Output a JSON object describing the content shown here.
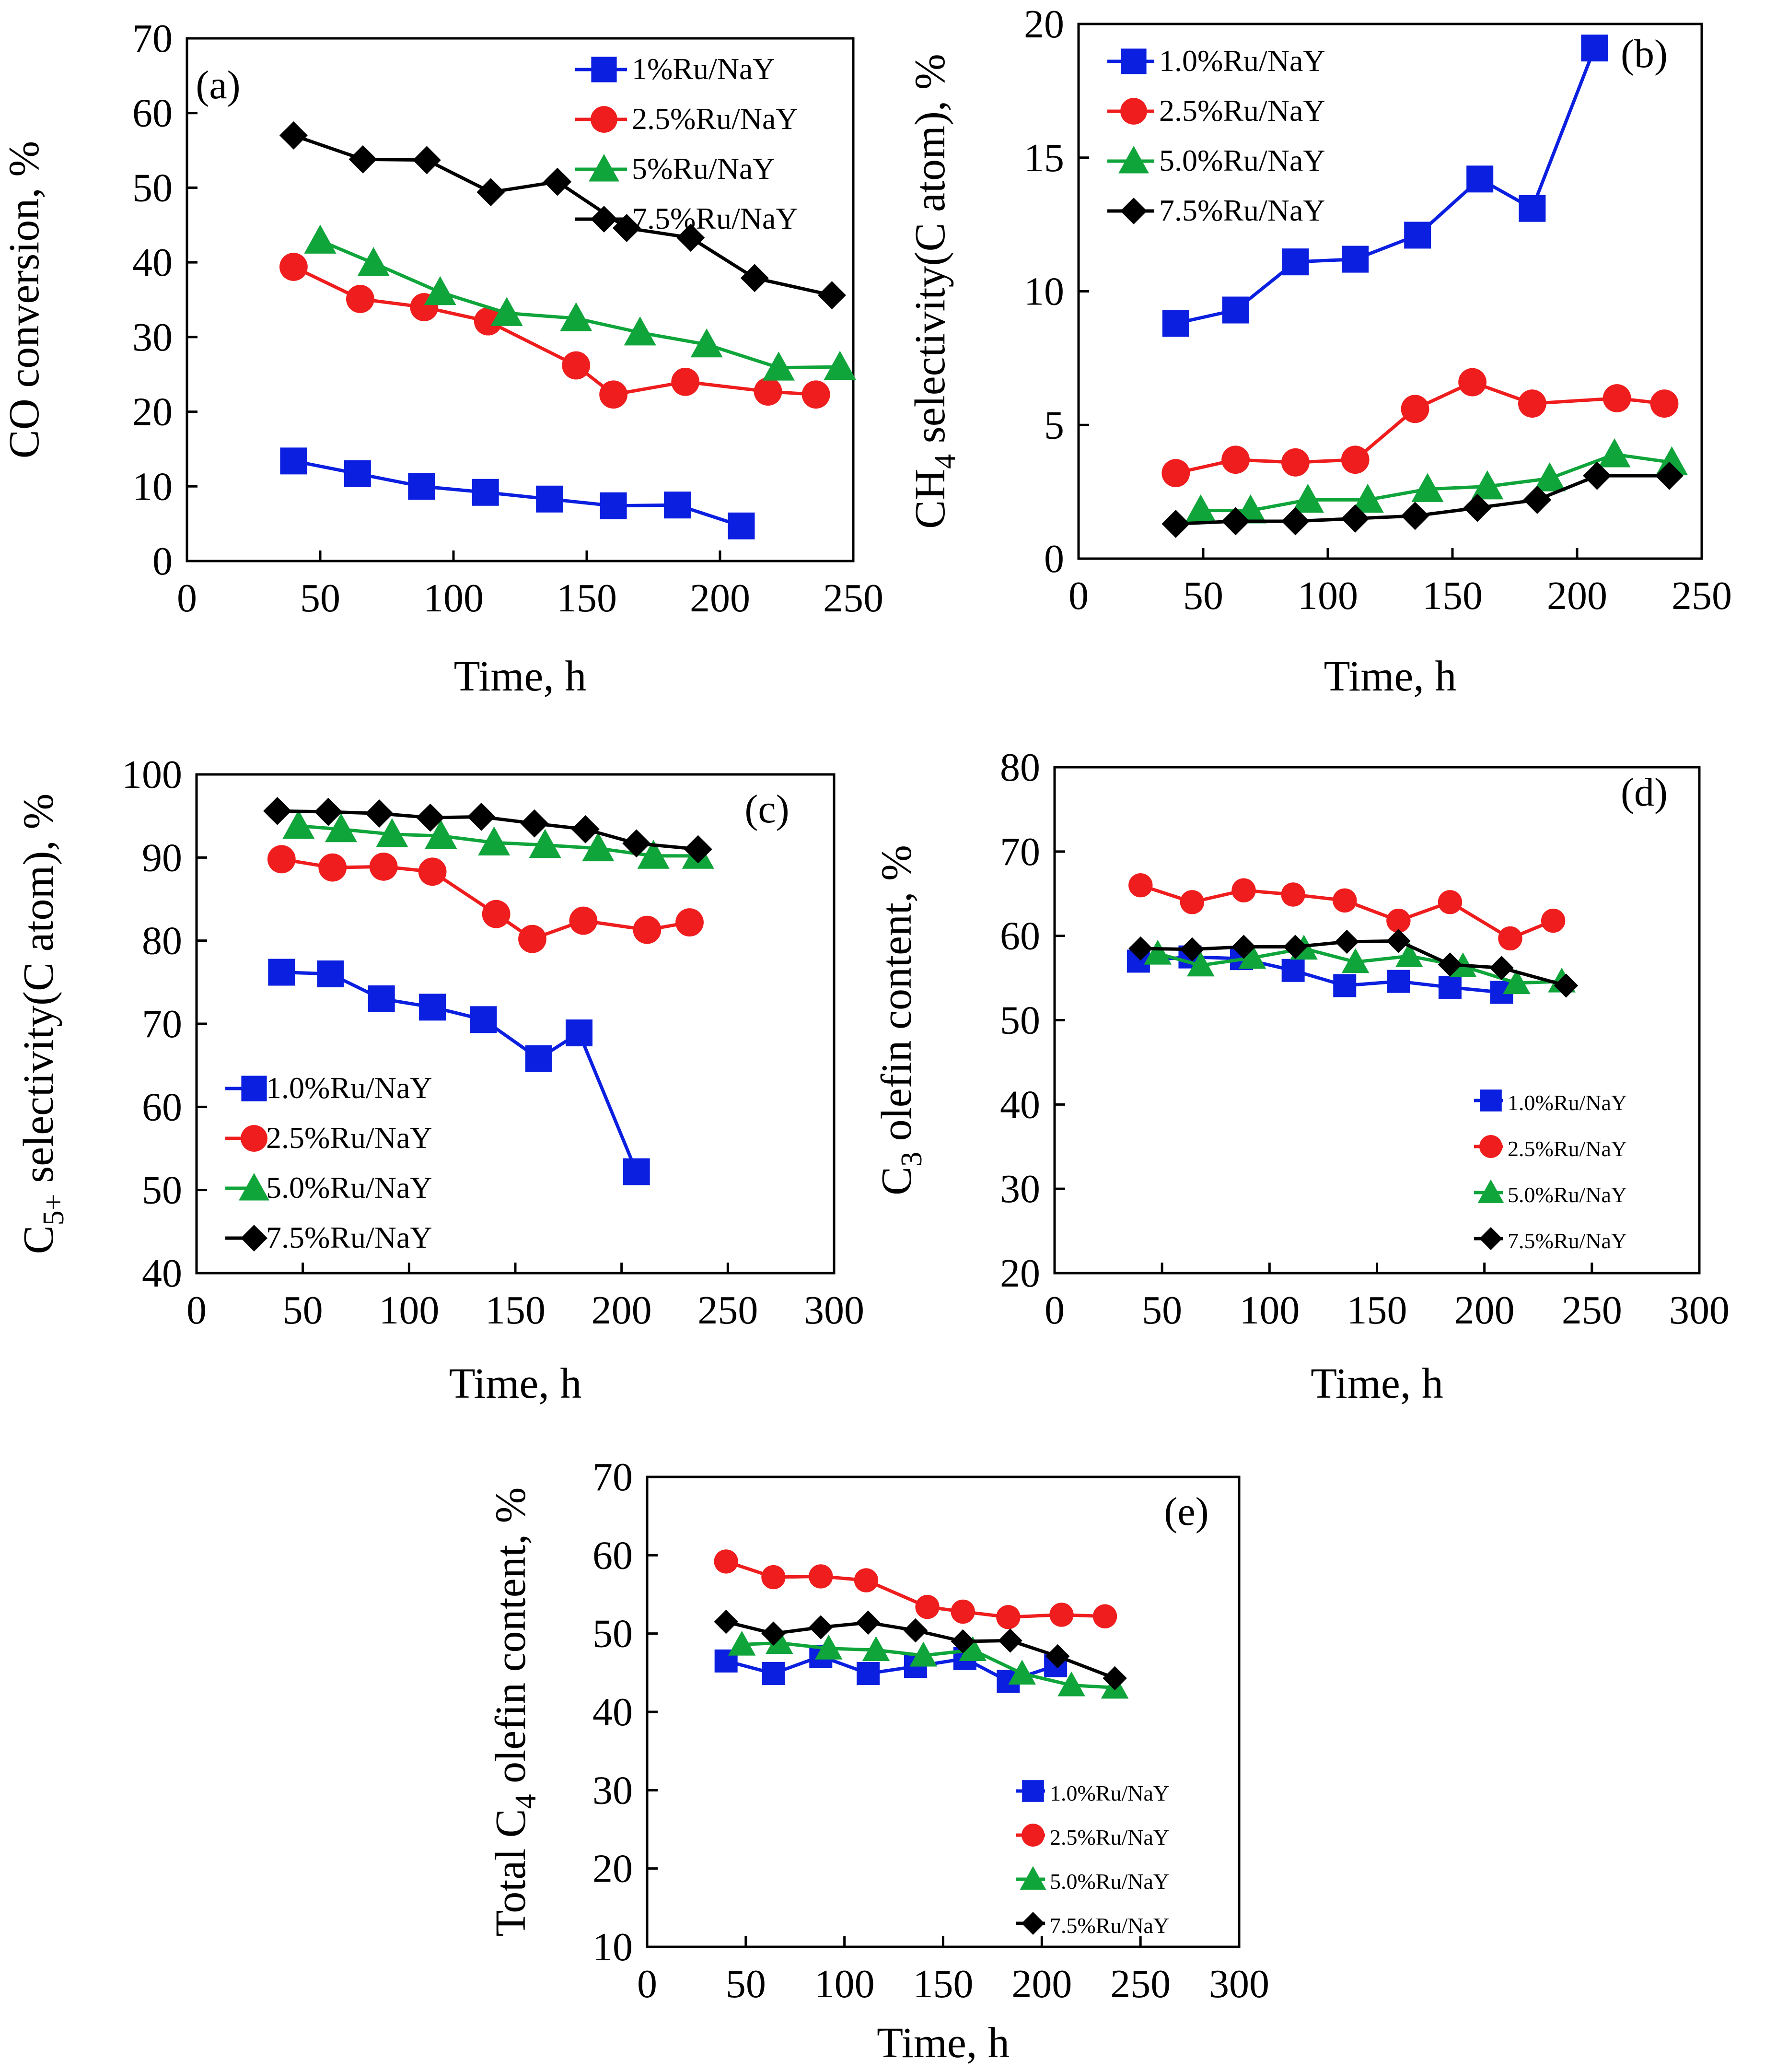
{
  "figure": {
    "series_colors": {
      "blue": "#0b1fe0",
      "red": "#ef1d1d",
      "green": "#10a53b",
      "black": "#000000"
    },
    "marker_names": [
      "square",
      "circle",
      "triangle",
      "diamond"
    ]
  },
  "chart_data": [
    {
      "type": "line",
      "panel_label": "(a)",
      "ylabel": "CO conversion, %",
      "xlabel": "Time, h",
      "xlim": [
        0,
        250
      ],
      "ylim": [
        0,
        70
      ],
      "xticks": [
        "0",
        "50",
        "100",
        "150",
        "200",
        "250"
      ],
      "yticks": [
        "0",
        "10",
        "20",
        "30",
        "40",
        "50",
        "60",
        "70"
      ],
      "legend_position": "top-right",
      "series": [
        {
          "name": "1%Ru/NaY",
          "x": [
            40,
            64,
            88,
            112,
            136,
            160,
            184,
            208
          ],
          "y": [
            13.4,
            11.7,
            10.0,
            9.2,
            8.3,
            7.4,
            7.5,
            4.7
          ]
        },
        {
          "name": "2.5%Ru/NaY",
          "x": [
            40,
            65,
            89,
            113,
            146,
            160,
            187,
            218,
            236
          ],
          "y": [
            39.4,
            35.1,
            34.0,
            32.1,
            26.2,
            22.3,
            24.0,
            22.7,
            22.3
          ]
        },
        {
          "name": "5%Ru/NaY",
          "x": [
            50,
            70,
            95,
            120,
            146,
            170,
            195,
            222,
            245
          ],
          "y": [
            42.9,
            39.9,
            36.0,
            33.2,
            32.5,
            30.6,
            29.0,
            25.9,
            26.0
          ]
        },
        {
          "name": "7.5%Ru/NaY",
          "x": [
            40,
            66,
            90,
            114,
            139,
            165,
            189,
            213,
            242
          ],
          "y": [
            57.0,
            53.8,
            53.7,
            49.4,
            50.8,
            44.6,
            43.3,
            37.9,
            35.6
          ]
        }
      ]
    },
    {
      "type": "line",
      "panel_label": "(b)",
      "ylabel": "CH4 selectivity(C atom), %",
      "ylabel_parts": {
        "prefix": "CH",
        "subscript": "4",
        "suffix": " selectivity(C atom), %"
      },
      "xlabel": "Time, h",
      "xlim": [
        0,
        250
      ],
      "ylim": [
        0,
        20
      ],
      "xticks": [
        "0",
        "50",
        "100",
        "150",
        "200",
        "250"
      ],
      "yticks": [
        "0",
        "5",
        "10",
        "15",
        "20"
      ],
      "legend_position": "top-left",
      "series": [
        {
          "name": "1.0%Ru/NaY",
          "x": [
            39,
            63,
            87,
            111,
            136,
            161,
            182,
            207
          ],
          "y": [
            8.8,
            9.3,
            11.1,
            11.2,
            12.1,
            14.2,
            13.1,
            19.1
          ]
        },
        {
          "name": "2.5%Ru/NaY",
          "x": [
            39,
            63,
            87,
            111,
            135,
            158,
            182,
            216,
            235
          ],
          "y": [
            3.2,
            3.7,
            3.6,
            3.7,
            5.6,
            6.6,
            5.8,
            6.0,
            5.8
          ]
        },
        {
          "name": "5.0%Ru/NaY",
          "x": [
            49,
            69,
            92,
            116,
            140,
            164,
            189,
            215,
            238
          ],
          "y": [
            1.8,
            1.8,
            2.2,
            2.2,
            2.6,
            2.7,
            3.0,
            3.9,
            3.6
          ]
        },
        {
          "name": "7.5%Ru/NaY",
          "x": [
            39,
            63,
            87,
            111,
            135,
            160,
            184,
            208,
            237
          ],
          "y": [
            1.3,
            1.4,
            1.4,
            1.5,
            1.6,
            1.9,
            2.2,
            3.1,
            3.1
          ]
        }
      ]
    },
    {
      "type": "line",
      "panel_label": "(c)",
      "ylabel": "C5+ selectivity(C atom), %",
      "ylabel_parts": {
        "prefix": "C",
        "subscript": "5+",
        "suffix": " selectivity(C atom), %"
      },
      "xlabel": "Time, h",
      "xlim": [
        0,
        300
      ],
      "ylim": [
        40,
        100
      ],
      "xticks": [
        "0",
        "50",
        "100",
        "150",
        "200",
        "250",
        "300"
      ],
      "yticks": [
        "40",
        "50",
        "60",
        "70",
        "80",
        "90",
        "100"
      ],
      "legend_position": "bottom-left",
      "series": [
        {
          "name": "1.0%Ru/NaY",
          "x": [
            40,
            63,
            87,
            111,
            135,
            161,
            180,
            207
          ],
          "y": [
            76.2,
            76.0,
            73.0,
            72.0,
            70.5,
            65.8,
            68.9,
            52.2
          ]
        },
        {
          "name": "2.5%Ru/NaY",
          "x": [
            40,
            64,
            88,
            111,
            141,
            158,
            182,
            212,
            232
          ],
          "y": [
            89.8,
            88.8,
            88.9,
            88.3,
            83.2,
            80.2,
            82.4,
            81.3,
            82.2
          ]
        },
        {
          "name": "5.0%Ru/NaY",
          "x": [
            48,
            68,
            92,
            115,
            140,
            164,
            189,
            215,
            236
          ],
          "y": [
            93.8,
            93.4,
            92.8,
            92.6,
            91.8,
            91.5,
            91.1,
            90.2,
            90.2
          ]
        },
        {
          "name": "7.5%Ru/NaY",
          "x": [
            38,
            62,
            86,
            110,
            134,
            159,
            183,
            207,
            236
          ],
          "y": [
            95.6,
            95.5,
            95.3,
            94.8,
            94.9,
            94.1,
            93.4,
            91.7,
            91.0
          ]
        }
      ]
    },
    {
      "type": "line",
      "panel_label": "(d)",
      "ylabel": "C3 olefin content, %",
      "ylabel_parts": {
        "prefix": "C",
        "subscript": "3",
        "suffix": " olefin content, %"
      },
      "xlabel": "Time, h",
      "xlim": [
        0,
        300
      ],
      "ylim": [
        20,
        80
      ],
      "xticks": [
        "0",
        "50",
        "100",
        "150",
        "200",
        "250",
        "300"
      ],
      "yticks": [
        "20",
        "30",
        "40",
        "50",
        "60",
        "70",
        "80"
      ],
      "legend_position": "bottom-right",
      "series": [
        {
          "name": "1.0%Ru/NaY",
          "x": [
            39,
            63,
            87,
            111,
            135,
            160,
            184,
            208
          ],
          "y": [
            57.0,
            57.5,
            57.3,
            55.9,
            54.1,
            54.6,
            53.9,
            53.3
          ]
        },
        {
          "name": "2.5%Ru/NaY",
          "x": [
            40,
            64,
            88,
            111,
            135,
            160,
            184,
            212,
            232
          ],
          "y": [
            66.0,
            64.0,
            65.4,
            64.9,
            64.2,
            61.8,
            64.0,
            59.7,
            61.8
          ]
        },
        {
          "name": "5.0%Ru/NaY",
          "x": [
            48,
            68,
            92,
            116,
            140,
            165,
            190,
            215,
            236
          ],
          "y": [
            57.9,
            56.5,
            57.4,
            58.5,
            56.9,
            57.6,
            56.4,
            54.4,
            54.6
          ]
        },
        {
          "name": "7.5%Ru/NaY",
          "x": [
            40,
            64,
            88,
            112,
            136,
            160,
            184,
            208,
            238
          ],
          "y": [
            58.5,
            58.4,
            58.7,
            58.7,
            59.3,
            59.4,
            56.6,
            56.2,
            54.1
          ]
        }
      ]
    },
    {
      "type": "line",
      "panel_label": "(e)",
      "ylabel": "Total C4 olefin content, %",
      "ylabel_parts": {
        "prefix": "Total C",
        "subscript": "4",
        "suffix": " olefin content, %"
      },
      "xlabel": "Time, h",
      "xlim": [
        0,
        300
      ],
      "ylim": [
        10,
        70
      ],
      "xticks": [
        "0",
        "50",
        "100",
        "150",
        "200",
        "250",
        "300"
      ],
      "yticks": [
        "10",
        "20",
        "30",
        "40",
        "50",
        "60",
        "70"
      ],
      "legend_position": "bottom-right",
      "series": [
        {
          "name": "1.0%Ru/NaY",
          "x": [
            40,
            64,
            88,
            112,
            136,
            161,
            183,
            207
          ],
          "y": [
            46.5,
            44.9,
            47.1,
            44.9,
            45.8,
            46.8,
            43.9,
            45.9
          ]
        },
        {
          "name": "2.5%Ru/NaY",
          "x": [
            40,
            64,
            88,
            111,
            142,
            160,
            183,
            210,
            232
          ],
          "y": [
            59.2,
            57.2,
            57.3,
            56.8,
            53.4,
            52.8,
            52.1,
            52.4,
            52.2
          ]
        },
        {
          "name": "5.0%Ru/NaY",
          "x": [
            48,
            67,
            92,
            116,
            140,
            165,
            190,
            215,
            237
          ],
          "y": [
            48.6,
            48.8,
            48.1,
            47.9,
            47.2,
            47.9,
            44.9,
            43.4,
            43.1
          ]
        },
        {
          "name": "7.5%Ru/NaY",
          "x": [
            40,
            64,
            88,
            112,
            136,
            160,
            184,
            208,
            237
          ],
          "y": [
            51.5,
            50.0,
            50.8,
            51.4,
            50.4,
            49.0,
            49.1,
            47.1,
            44.3
          ]
        }
      ]
    }
  ]
}
